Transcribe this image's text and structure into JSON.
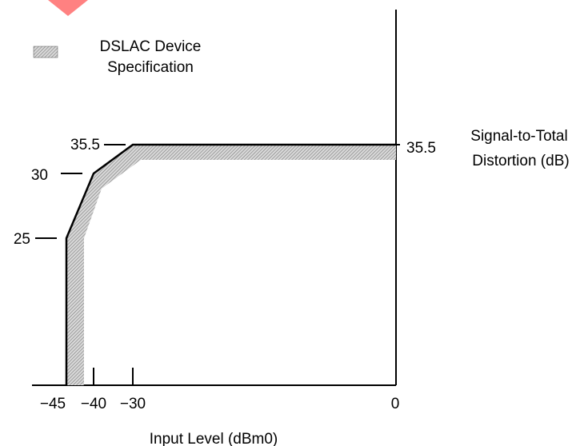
{
  "chart_data": {
    "type": "line",
    "xlabel": "Input Level (dBm0)",
    "ylabel": [
      "Signal-to-Total",
      "Distortion (dB)"
    ],
    "legend": {
      "label": [
        "DSLAC Device",
        "Specification"
      ],
      "placement": "top-left",
      "swatch": "hatched-gray"
    },
    "x_ticks": [
      "−45",
      "−40",
      "−30",
      "0"
    ],
    "x_tick_values": [
      -45,
      -40,
      -30,
      0
    ],
    "y_ticks_left": [
      "35.5",
      "30",
      "25"
    ],
    "y_tick_values": [
      35.5,
      30,
      25
    ],
    "y_tick_right": "35.5",
    "series": [
      {
        "name": "DSLAC Device Specification",
        "x": [
          -45,
          -45,
          -40,
          -30,
          0
        ],
        "y": [
          16,
          25,
          30,
          35.5,
          35.5
        ]
      }
    ],
    "grid": false,
    "colors": {
      "line": "#000000",
      "band": "#bdbdbd",
      "watermark": "#ff4d4d"
    }
  }
}
